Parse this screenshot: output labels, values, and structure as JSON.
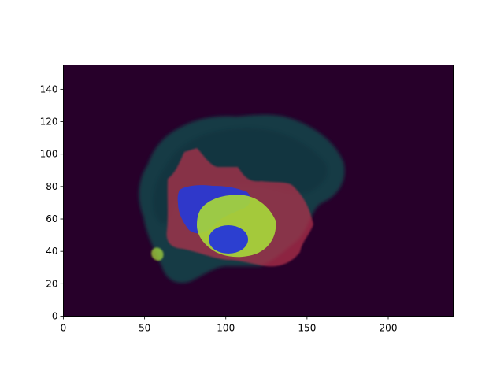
{
  "figure": {
    "background": "#ffffff",
    "frame_color": "#000000"
  },
  "image": {
    "kind": "MRI sagittal slice with tumor segmentation overlay",
    "background_color": "#27002a",
    "brain_tissue_color": "#153a45",
    "segmentation_colors": {
      "edema": "#b5314b",
      "enhancing": "#2638d8",
      "core": "#a6d63b"
    }
  },
  "axes": {
    "x_range": [
      0,
      240
    ],
    "y_range": [
      0,
      155
    ],
    "x_ticks": [
      {
        "value": 0,
        "label": "0"
      },
      {
        "value": 50,
        "label": "50"
      },
      {
        "value": 100,
        "label": "100"
      },
      {
        "value": 150,
        "label": "150"
      },
      {
        "value": 200,
        "label": "200"
      }
    ],
    "y_ticks": [
      {
        "value": 0,
        "label": "0"
      },
      {
        "value": 20,
        "label": "20"
      },
      {
        "value": 40,
        "label": "40"
      },
      {
        "value": 60,
        "label": "60"
      },
      {
        "value": 80,
        "label": "80"
      },
      {
        "value": 100,
        "label": "100"
      },
      {
        "value": 120,
        "label": "120"
      },
      {
        "value": 140,
        "label": "140"
      }
    ]
  }
}
